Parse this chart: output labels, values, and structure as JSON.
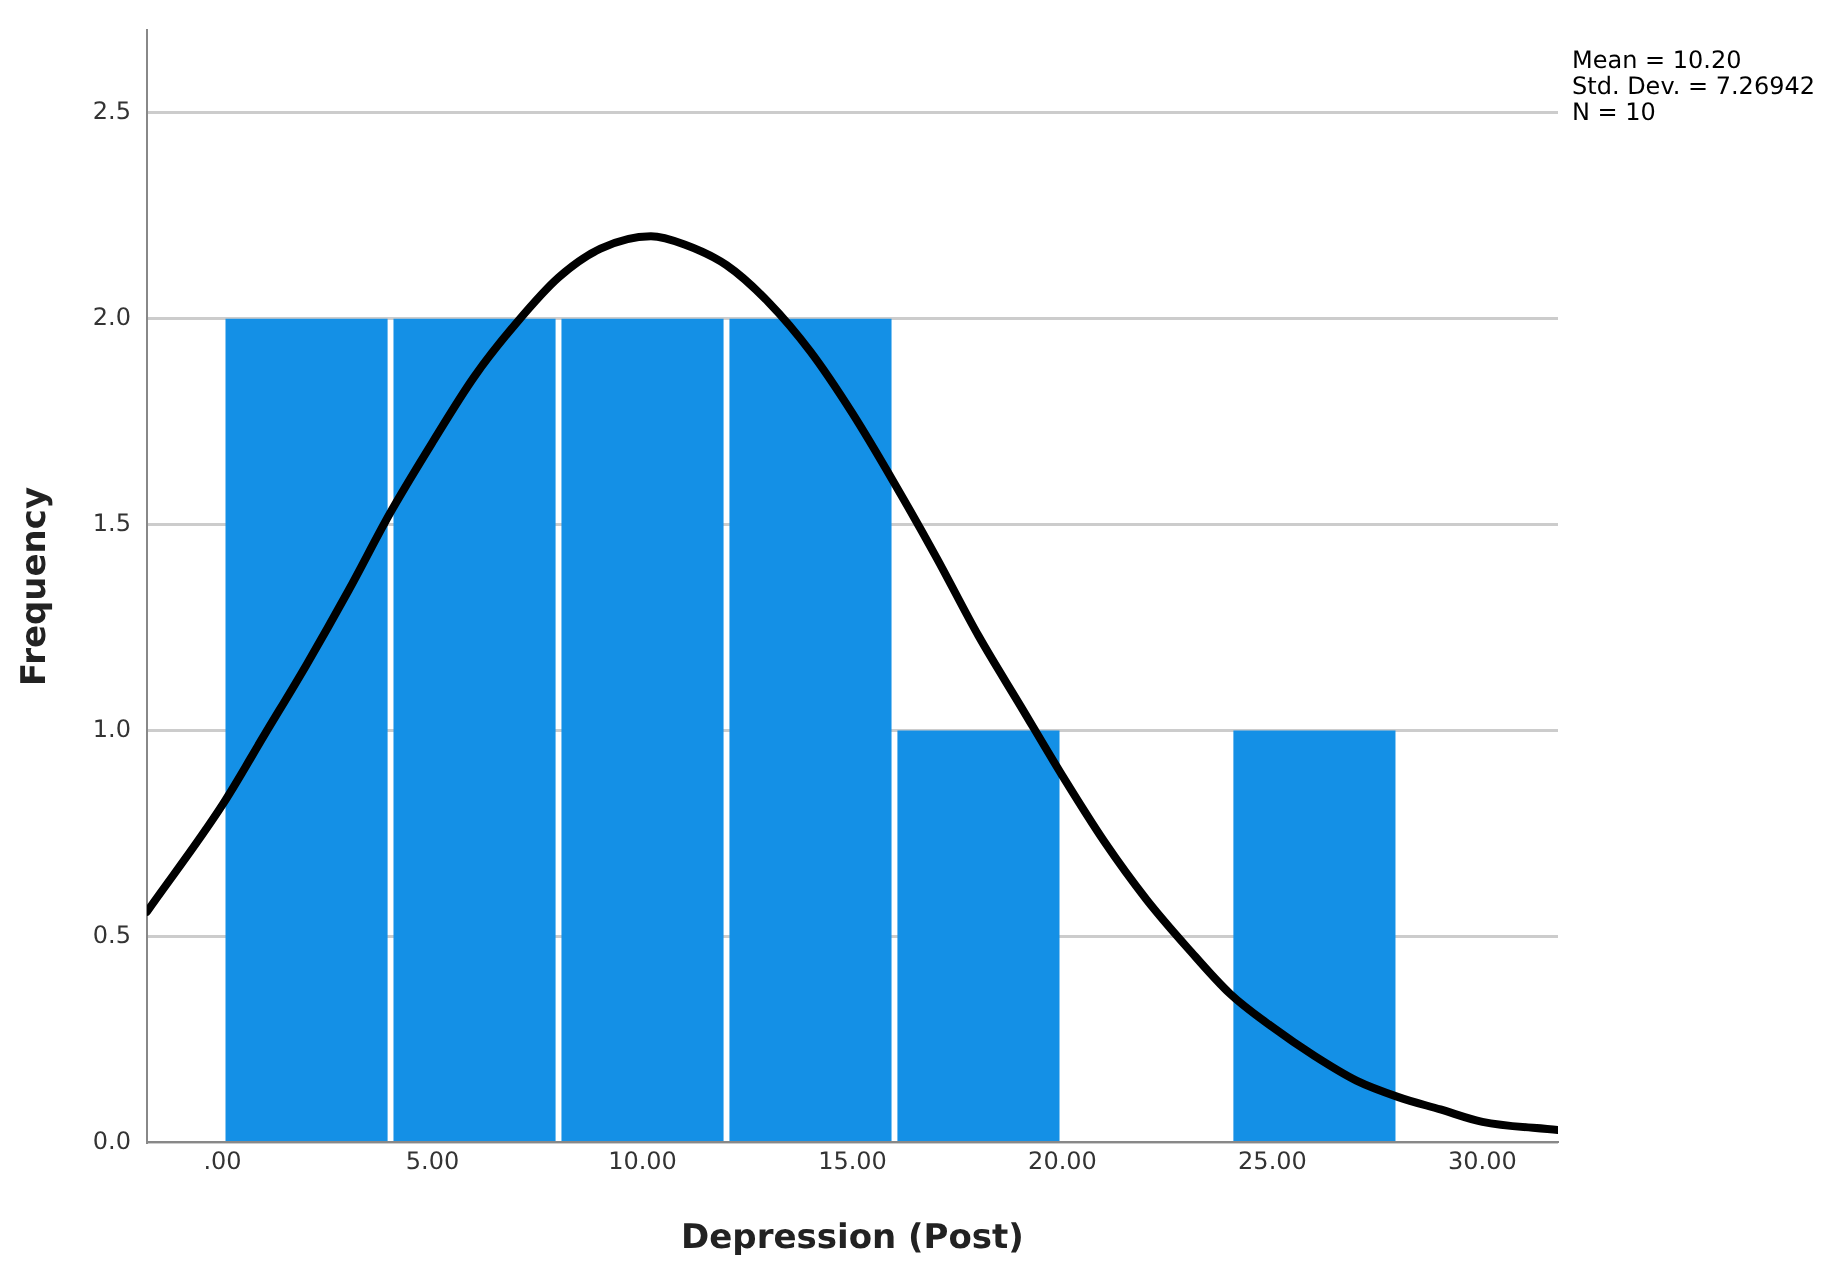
{
  "chart_data": {
    "type": "histogram",
    "xlabel": "Depression (Post)",
    "ylabel": "Frequency",
    "bins": [
      0,
      4,
      8,
      12,
      16,
      20,
      24,
      28
    ],
    "values": [
      2,
      2,
      2,
      2,
      1,
      0,
      1
    ],
    "color": "#1490e6",
    "series": [
      {
        "type": "line",
        "color": "#000000",
        "x": [
          -1.8,
          0,
          1,
          2,
          3,
          4,
          5,
          6,
          7,
          8,
          9,
          10.2,
          11,
          12,
          13,
          14,
          15,
          16,
          17,
          18,
          19,
          20,
          21,
          22,
          23,
          24,
          25,
          26,
          27,
          28,
          29,
          30,
          31.8
        ],
        "values": [
          0.56,
          0.82,
          0.99,
          1.16,
          1.34,
          1.53,
          1.7,
          1.86,
          1.99,
          2.1,
          2.17,
          2.2,
          2.18,
          2.13,
          2.04,
          1.92,
          1.77,
          1.6,
          1.42,
          1.23,
          1.06,
          0.89,
          0.73,
          0.59,
          0.47,
          0.36,
          0.28,
          0.21,
          0.15,
          0.11,
          0.08,
          0.05,
          0.03
        ]
      }
    ],
    "xlim": [
      -1.8,
      31.8
    ],
    "ylim": [
      0,
      2.7
    ],
    "xticks": [
      {
        "value": 0,
        "label": ".00"
      },
      {
        "value": 5,
        "label": "5.00"
      },
      {
        "value": 10,
        "label": "10.00"
      },
      {
        "value": 15,
        "label": "15.00"
      },
      {
        "value": 20,
        "label": "20.00"
      },
      {
        "value": 25,
        "label": "25.00"
      },
      {
        "value": 30,
        "label": "30.00"
      }
    ],
    "yticks": [
      {
        "value": 0,
        "label": "0.0"
      },
      {
        "value": 0.5,
        "label": "0.5"
      },
      {
        "value": 1,
        "label": "1.0"
      },
      {
        "value": 1.5,
        "label": "1.5"
      },
      {
        "value": 2,
        "label": "2.0"
      },
      {
        "value": 2.5,
        "label": "2.5"
      }
    ],
    "grid": "y",
    "legend": false,
    "marker": "none",
    "line_style": "solid",
    "annotations": [
      "Mean = 10.20",
      "Std. Dev. = 7.26942",
      "N = 10"
    ]
  }
}
